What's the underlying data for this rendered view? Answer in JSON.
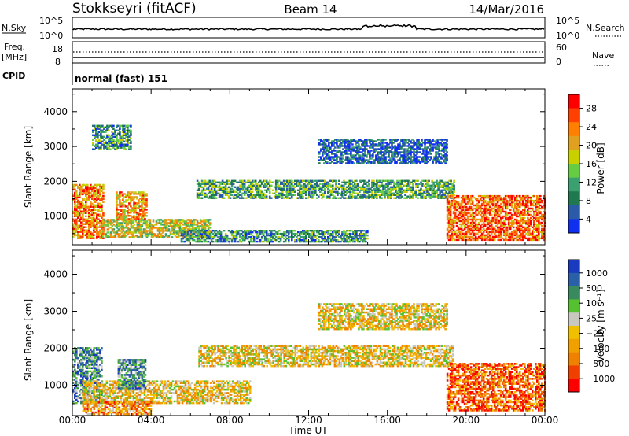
{
  "header": {
    "station": "Stokkseyri (fitACF)",
    "beam": "Beam 14",
    "date": "14/Mar/2016"
  },
  "info_panels": {
    "nsky_label": "N.Sky",
    "nsky_ticks": [
      "10^5",
      "10^0"
    ],
    "nsearch_label": "N.Search",
    "freq_label_1": "Freq.",
    "freq_label_2": "[MHz]",
    "freq_ticks": [
      "18",
      "8"
    ],
    "nave_ticks": [
      "60",
      "0"
    ],
    "nave_label": "Nave",
    "cpid_label": "CPID",
    "mode_text": "normal (fast) 151"
  },
  "chart_data": [
    {
      "type": "heatmap",
      "name": "power",
      "ylabel": "Slant Range [km]",
      "yticks": [
        1000,
        2000,
        3000,
        4000
      ],
      "ylim": [
        180,
        4650
      ],
      "xlim": [
        0,
        24
      ],
      "xticks": [
        "00:00",
        "04:00",
        "08:00",
        "12:00",
        "16:00",
        "20:00",
        "00:00"
      ],
      "colorbar": {
        "label": "Power [dB]",
        "ticks": [
          "28",
          "24",
          "20",
          "16",
          "12",
          "8",
          "4"
        ],
        "colors": [
          "#ff0000",
          "#ff4000",
          "#ff8000",
          "#e0a020",
          "#c8d000",
          "#66cc44",
          "#3aa070",
          "#207850",
          "#2a5aa8",
          "#1030f0"
        ]
      },
      "regions": [
        {
          "t0": 0.0,
          "t1": 1.6,
          "r0": 350,
          "r1": 1900,
          "level": 0.75
        },
        {
          "t0": 1.5,
          "t1": 7.0,
          "r0": 380,
          "r1": 900,
          "level": 0.55
        },
        {
          "t0": 2.2,
          "t1": 3.8,
          "r0": 900,
          "r1": 1700,
          "level": 0.7
        },
        {
          "t0": 5.5,
          "t1": 15.0,
          "r0": 250,
          "r1": 600,
          "level": 0.3
        },
        {
          "t0": 6.3,
          "t1": 19.4,
          "r0": 1500,
          "r1": 2000,
          "level": 0.35
        },
        {
          "t0": 12.5,
          "t1": 19.0,
          "r0": 2500,
          "r1": 3200,
          "level": 0.15
        },
        {
          "t0": 19.0,
          "t1": 24.0,
          "r0": 300,
          "r1": 1600,
          "level": 0.8
        },
        {
          "t0": 1.0,
          "t1": 3.0,
          "r0": 2900,
          "r1": 3600,
          "level": 0.3
        }
      ]
    },
    {
      "type": "heatmap",
      "name": "velocity",
      "ylabel": "Slant Range [km]",
      "yticks": [
        1000,
        2000,
        3000,
        4000
      ],
      "ylim": [
        180,
        4650
      ],
      "xlim": [
        0,
        24
      ],
      "xlabel": "Time UT",
      "xticks": [
        "00:00",
        "04:00",
        "08:00",
        "12:00",
        "16:00",
        "20:00",
        "00:00"
      ],
      "colorbar": {
        "label": "Velocity [m s⁻¹]",
        "ticks": [
          "1000",
          "500",
          "100",
          "25",
          "−25",
          "−100",
          "−500",
          "−1000"
        ],
        "colors": [
          "#1a3ac0",
          "#2a60a8",
          "#3a8a60",
          "#55c030",
          "#c8c8c0",
          "#f0c000",
          "#f0a000",
          "#f08000",
          "#f04000",
          "#ff0000"
        ]
      },
      "regions": [
        {
          "t0": 0.0,
          "t1": 1.5,
          "r0": 500,
          "r1": 2000,
          "level": 0.75
        },
        {
          "t0": 0.5,
          "t1": 9.0,
          "r0": 500,
          "r1": 1100,
          "level": 0.45
        },
        {
          "t0": 2.3,
          "t1": 3.7,
          "r0": 900,
          "r1": 1700,
          "level": 0.75
        },
        {
          "t0": 0.5,
          "t1": 4.0,
          "r0": 200,
          "r1": 550,
          "level": 0.3
        },
        {
          "t0": 6.4,
          "t1": 19.3,
          "r0": 1500,
          "r1": 2050,
          "level": 0.45
        },
        {
          "t0": 12.5,
          "t1": 19.0,
          "r0": 2500,
          "r1": 3200,
          "level": 0.45
        },
        {
          "t0": 19.0,
          "t1": 24.0,
          "r0": 300,
          "r1": 1600,
          "level": 0.2
        }
      ]
    }
  ]
}
